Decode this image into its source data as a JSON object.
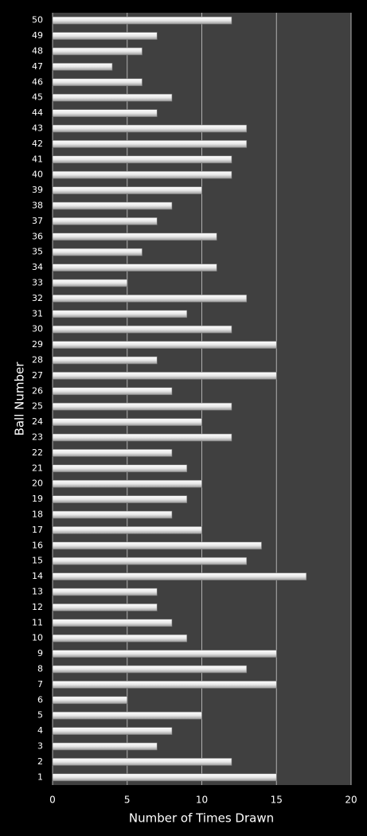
{
  "chart_data": {
    "type": "hbar",
    "x_label": "Number of Times Drawn",
    "y_label": "Ball Number",
    "categories": [
      "1",
      "2",
      "3",
      "4",
      "5",
      "6",
      "7",
      "8",
      "9",
      "10",
      "11",
      "12",
      "13",
      "14",
      "15",
      "16",
      "17",
      "18",
      "19",
      "20",
      "21",
      "22",
      "23",
      "24",
      "25",
      "26",
      "27",
      "28",
      "29",
      "30",
      "31",
      "32",
      "33",
      "34",
      "35",
      "36",
      "37",
      "38",
      "39",
      "40",
      "41",
      "42",
      "43",
      "44",
      "45",
      "46",
      "47",
      "48",
      "49",
      "50"
    ],
    "values": [
      15,
      12,
      7,
      8,
      10,
      5,
      15,
      13,
      15,
      9,
      8,
      7,
      7,
      17,
      13,
      14,
      10,
      8,
      9,
      10,
      9,
      8,
      12,
      10,
      12,
      8,
      15,
      7,
      15,
      12,
      9,
      13,
      5,
      11,
      6,
      11,
      7,
      8,
      10,
      12,
      12,
      13,
      13,
      7,
      8,
      6,
      4,
      6,
      7,
      12
    ],
    "color": "#ffffff",
    "xlim": [
      0,
      20
    ],
    "xticks": [
      0,
      5,
      10,
      15,
      20
    ],
    "grid": true
  }
}
